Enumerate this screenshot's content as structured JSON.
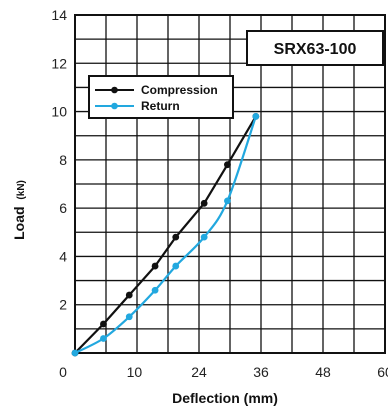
{
  "chart_data": {
    "type": "line",
    "xlabel": "Deflection (mm)",
    "ylabel": "Load",
    "ylabel_unit": "(kN)",
    "xlim": [
      0,
      60
    ],
    "ylim": [
      0,
      14
    ],
    "x_ticks": [
      "0",
      "12",
      "24",
      "36",
      "48",
      "60"
    ],
    "x_minor_ticks": [
      "6",
      "18",
      "30",
      "42",
      "54"
    ],
    "y_ticks": [
      "2",
      "4",
      "6",
      "8",
      "10",
      "12",
      "14"
    ],
    "x_minor_ticks_visible": [
      "10"
    ],
    "grid": true,
    "legend_position": "top-left",
    "annotation": "SRX63-100",
    "series": [
      {
        "name": "Compression",
        "color": "#111111",
        "x": [
          0,
          5.5,
          10.5,
          15.5,
          19.5,
          25,
          29.5,
          35
        ],
        "y": [
          0,
          1.2,
          2.4,
          3.6,
          4.8,
          6.2,
          7.8,
          9.8
        ]
      },
      {
        "name": "Return",
        "color": "#22a8df",
        "x": [
          0,
          5.5,
          10.5,
          15.5,
          19.5,
          25,
          29.5,
          35
        ],
        "y": [
          0,
          0.6,
          1.5,
          2.6,
          3.6,
          4.8,
          6.3,
          9.8
        ]
      }
    ]
  }
}
